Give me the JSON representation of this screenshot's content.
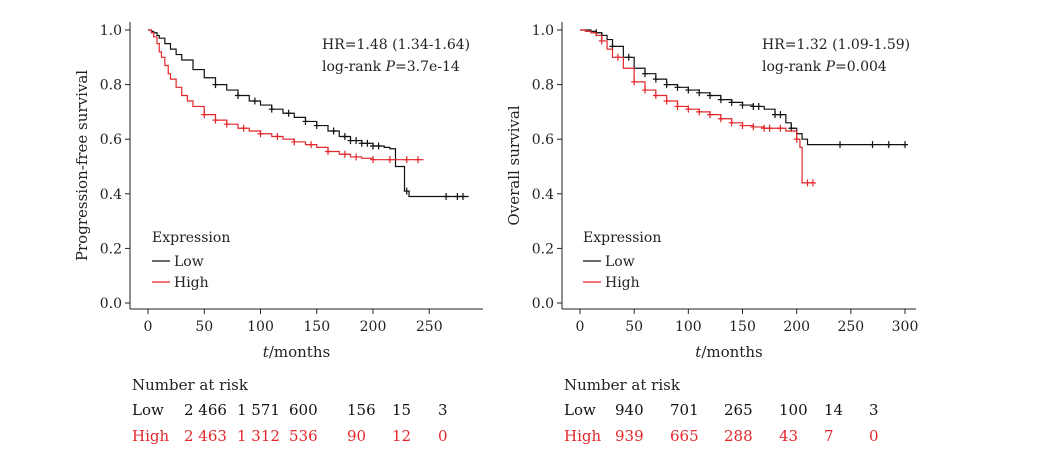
{
  "colors": {
    "low": "#111111",
    "high": "#e3262b",
    "axis": "#222222"
  },
  "legend_title": "Expression",
  "risk_title": "Number at risk",
  "chart_data": [
    {
      "type": "line",
      "ylabel": "Progression-free survival",
      "xlabel_italic": "t",
      "xlabel_rest": "/months",
      "xlim": [
        0,
        290
      ],
      "ylim": [
        0,
        1.0
      ],
      "xticks": [
        0,
        50,
        100,
        150,
        200,
        250
      ],
      "yticks": [
        0.0,
        0.2,
        0.4,
        0.6,
        0.8,
        1.0
      ],
      "ytick_labels": [
        "0.0",
        "0.2",
        "0.4",
        "0.6",
        "0.8",
        "1.0"
      ],
      "grid": false,
      "legend_position": "bottom-left",
      "hr_text": "HR=1.48 (1.34-1.64)",
      "logrank_prefix": "log-rank ",
      "p_italic": "P",
      "p_rest": "=3.7e-14",
      "series": [
        {
          "name": "Low",
          "color_key": "low",
          "x": [
            0,
            3,
            5,
            8,
            10,
            15,
            20,
            25,
            30,
            40,
            50,
            60,
            70,
            80,
            90,
            100,
            110,
            120,
            130,
            140,
            150,
            160,
            170,
            180,
            190,
            200,
            210,
            215,
            220,
            225,
            228,
            232,
            240,
            250,
            260,
            270,
            285
          ],
          "y": [
            1.0,
            0.995,
            0.99,
            0.98,
            0.97,
            0.95,
            0.93,
            0.91,
            0.89,
            0.855,
            0.825,
            0.8,
            0.78,
            0.76,
            0.74,
            0.725,
            0.71,
            0.695,
            0.68,
            0.665,
            0.65,
            0.63,
            0.61,
            0.595,
            0.585,
            0.575,
            0.57,
            0.565,
            0.5,
            0.5,
            0.41,
            0.39,
            0.39,
            0.39,
            0.39,
            0.39,
            0.39
          ],
          "censor_x": [
            60,
            80,
            95,
            110,
            125,
            140,
            150,
            165,
            175,
            180,
            185,
            190,
            195,
            200,
            205,
            230,
            265,
            275,
            280
          ]
        },
        {
          "name": "High",
          "color_key": "high",
          "x": [
            0,
            3,
            5,
            8,
            10,
            12,
            15,
            18,
            20,
            25,
            30,
            35,
            40,
            50,
            60,
            70,
            80,
            90,
            100,
            110,
            120,
            130,
            140,
            150,
            160,
            170,
            180,
            190,
            200,
            210,
            220,
            230,
            240,
            245
          ],
          "y": [
            1.0,
            0.99,
            0.975,
            0.95,
            0.92,
            0.9,
            0.87,
            0.84,
            0.82,
            0.79,
            0.76,
            0.74,
            0.72,
            0.69,
            0.67,
            0.655,
            0.64,
            0.63,
            0.62,
            0.61,
            0.6,
            0.59,
            0.58,
            0.57,
            0.555,
            0.545,
            0.535,
            0.53,
            0.525,
            0.525,
            0.525,
            0.525,
            0.525,
            0.525
          ],
          "censor_x": [
            50,
            60,
            70,
            85,
            100,
            115,
            130,
            145,
            160,
            175,
            185,
            200,
            215,
            230,
            240
          ]
        }
      ],
      "risk_rows": [
        {
          "label": "Low",
          "color_key": "low",
          "values": [
            "2 466",
            "1 571",
            "600",
            "156",
            "15",
            "3"
          ]
        },
        {
          "label": "High",
          "color_key": "high",
          "values": [
            "2 463",
            "1 312",
            "536",
            "90",
            "12",
            "0"
          ]
        }
      ]
    },
    {
      "type": "line",
      "ylabel": "Overall survival",
      "xlabel_italic": "t",
      "xlabel_rest": "/months",
      "xlim": [
        0,
        310
      ],
      "ylim": [
        0,
        1.0
      ],
      "xticks": [
        0,
        50,
        100,
        150,
        200,
        250,
        300
      ],
      "yticks": [
        0.0,
        0.2,
        0.4,
        0.6,
        0.8,
        1.0
      ],
      "ytick_labels": [
        "0.0",
        "0.2",
        "0.4",
        "0.6",
        "0.8",
        "1.0"
      ],
      "grid": false,
      "legend_position": "bottom-left",
      "hr_text": "HR=1.32 (1.09-1.59)",
      "logrank_prefix": "log-rank ",
      "p_italic": "P",
      "p_rest": "=0.004",
      "series": [
        {
          "name": "Low",
          "color_key": "low",
          "x": [
            0,
            5,
            10,
            15,
            20,
            25,
            30,
            40,
            50,
            60,
            70,
            80,
            90,
            100,
            110,
            120,
            130,
            140,
            150,
            160,
            170,
            180,
            190,
            195,
            200,
            205,
            210,
            220,
            240,
            260,
            280,
            300
          ],
          "y": [
            1.0,
            1.0,
            0.995,
            0.99,
            0.98,
            0.965,
            0.94,
            0.9,
            0.86,
            0.84,
            0.82,
            0.8,
            0.79,
            0.78,
            0.77,
            0.76,
            0.745,
            0.735,
            0.725,
            0.72,
            0.71,
            0.69,
            0.66,
            0.64,
            0.62,
            0.6,
            0.58,
            0.58,
            0.58,
            0.58,
            0.58,
            0.58
          ],
          "censor_x": [
            15,
            20,
            30,
            45,
            60,
            70,
            80,
            90,
            100,
            110,
            120,
            130,
            140,
            150,
            160,
            165,
            180,
            185,
            195,
            240,
            270,
            285,
            300
          ]
        },
        {
          "name": "High",
          "color_key": "high",
          "x": [
            0,
            5,
            10,
            15,
            20,
            25,
            30,
            40,
            50,
            60,
            70,
            80,
            90,
            100,
            110,
            120,
            130,
            140,
            150,
            160,
            170,
            180,
            190,
            200,
            203,
            205,
            210,
            215
          ],
          "y": [
            1.0,
            0.995,
            0.99,
            0.98,
            0.96,
            0.93,
            0.9,
            0.86,
            0.81,
            0.78,
            0.76,
            0.74,
            0.72,
            0.71,
            0.7,
            0.69,
            0.675,
            0.66,
            0.65,
            0.645,
            0.64,
            0.64,
            0.63,
            0.6,
            0.57,
            0.44,
            0.44,
            0.44
          ],
          "censor_x": [
            20,
            35,
            50,
            60,
            70,
            80,
            90,
            100,
            110,
            120,
            130,
            140,
            150,
            160,
            170,
            175,
            185,
            200,
            210,
            215
          ]
        }
      ],
      "risk_rows": [
        {
          "label": "Low",
          "color_key": "low",
          "values": [
            "940",
            "701",
            "265",
            "100",
            "14",
            "3"
          ]
        },
        {
          "label": "High",
          "color_key": "high",
          "values": [
            "939",
            "665",
            "288",
            "43",
            "7",
            "0"
          ]
        }
      ]
    }
  ]
}
